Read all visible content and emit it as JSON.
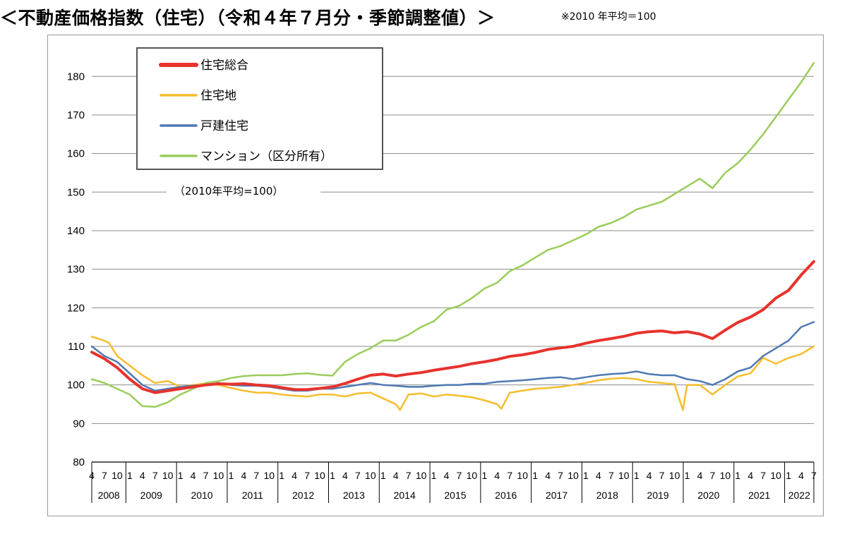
{
  "header": {
    "title": "＜不動産価格指数（住宅）（令和４年７月分・季節調整値）＞",
    "note": "※2010 年平均＝100"
  },
  "chart_data": {
    "type": "line",
    "annotation": "（2010年平均=100）",
    "ylim": [
      80,
      180
    ],
    "ylim_plot_max": 187,
    "yticks": [
      80,
      90,
      100,
      110,
      120,
      130,
      140,
      150,
      160,
      170,
      180
    ],
    "grid": true,
    "legend_position": "top-left",
    "x_month_labels": [
      "4",
      "7",
      "10",
      "1"
    ],
    "years": [
      "2008",
      "2009",
      "2010",
      "2011",
      "2012",
      "2013",
      "2014",
      "2015",
      "2016",
      "2017",
      "2018",
      "2019",
      "2020",
      "2021",
      "2022"
    ],
    "x_start": "2008-04",
    "x_end": "2022-07",
    "series": [
      {
        "name": "住宅総合",
        "color": "#e8322d",
        "width": 4,
        "points": [
          [
            "2008-04",
            108.5
          ],
          [
            "2008-07",
            106.8
          ],
          [
            "2008-10",
            104.5
          ],
          [
            "2009-01",
            101.5
          ],
          [
            "2009-04",
            99.0
          ],
          [
            "2009-07",
            98.0
          ],
          [
            "2009-10",
            98.5
          ],
          [
            "2010-01",
            99.0
          ],
          [
            "2010-04",
            99.5
          ],
          [
            "2010-07",
            100.0
          ],
          [
            "2010-10",
            100.3
          ],
          [
            "2011-01",
            100.2
          ],
          [
            "2011-04",
            100.3
          ],
          [
            "2011-07",
            100.0
          ],
          [
            "2011-10",
            99.8
          ],
          [
            "2012-01",
            99.3
          ],
          [
            "2012-04",
            98.8
          ],
          [
            "2012-07",
            98.8
          ],
          [
            "2012-10",
            99.1
          ],
          [
            "2013-01",
            99.5
          ],
          [
            "2013-04",
            100.4
          ],
          [
            "2013-07",
            101.5
          ],
          [
            "2013-10",
            102.5
          ],
          [
            "2014-01",
            102.8
          ],
          [
            "2014-04",
            102.3
          ],
          [
            "2014-07",
            102.8
          ],
          [
            "2014-10",
            103.2
          ],
          [
            "2015-01",
            103.8
          ],
          [
            "2015-04",
            104.3
          ],
          [
            "2015-07",
            104.8
          ],
          [
            "2015-10",
            105.5
          ],
          [
            "2016-01",
            106.0
          ],
          [
            "2016-04",
            106.6
          ],
          [
            "2016-07",
            107.4
          ],
          [
            "2016-10",
            107.8
          ],
          [
            "2017-01",
            108.4
          ],
          [
            "2017-04",
            109.2
          ],
          [
            "2017-07",
            109.6
          ],
          [
            "2017-10",
            110.0
          ],
          [
            "2018-01",
            110.8
          ],
          [
            "2018-04",
            111.5
          ],
          [
            "2018-07",
            112.0
          ],
          [
            "2018-10",
            112.6
          ],
          [
            "2019-01",
            113.4
          ],
          [
            "2019-04",
            113.8
          ],
          [
            "2019-07",
            114.0
          ],
          [
            "2019-10",
            113.5
          ],
          [
            "2020-01",
            113.8
          ],
          [
            "2020-04",
            113.2
          ],
          [
            "2020-07",
            112.0
          ],
          [
            "2020-10",
            114.2
          ],
          [
            "2021-01",
            116.2
          ],
          [
            "2021-04",
            117.6
          ],
          [
            "2021-07",
            119.5
          ],
          [
            "2021-10",
            122.5
          ],
          [
            "2022-01",
            124.5
          ],
          [
            "2022-04",
            128.5
          ],
          [
            "2022-07",
            132.0
          ]
        ]
      },
      {
        "name": "住宅地",
        "color": "#f6bd2c",
        "width": 2.5,
        "points": [
          [
            "2008-04",
            112.5
          ],
          [
            "2008-06",
            111.8
          ],
          [
            "2008-08",
            111.0
          ],
          [
            "2008-10",
            107.5
          ],
          [
            "2009-01",
            105.0
          ],
          [
            "2009-04",
            102.5
          ],
          [
            "2009-07",
            100.5
          ],
          [
            "2009-10",
            101.0
          ],
          [
            "2010-01",
            99.5
          ],
          [
            "2010-04",
            100.0
          ],
          [
            "2010-07",
            100.4
          ],
          [
            "2010-10",
            100.0
          ],
          [
            "2011-01",
            99.2
          ],
          [
            "2011-04",
            98.5
          ],
          [
            "2011-07",
            98.0
          ],
          [
            "2011-10",
            98.0
          ],
          [
            "2012-01",
            97.5
          ],
          [
            "2012-04",
            97.2
          ],
          [
            "2012-07",
            97.0
          ],
          [
            "2012-10",
            97.5
          ],
          [
            "2013-01",
            97.5
          ],
          [
            "2013-04",
            97.0
          ],
          [
            "2013-07",
            97.8
          ],
          [
            "2013-10",
            98.0
          ],
          [
            "2014-01",
            96.5
          ],
          [
            "2014-04",
            95.0
          ],
          [
            "2014-05",
            93.5
          ],
          [
            "2014-07",
            97.5
          ],
          [
            "2014-10",
            97.8
          ],
          [
            "2015-01",
            97.0
          ],
          [
            "2015-04",
            97.5
          ],
          [
            "2015-07",
            97.2
          ],
          [
            "2015-10",
            96.8
          ],
          [
            "2016-01",
            96.0
          ],
          [
            "2016-04",
            95.0
          ],
          [
            "2016-05",
            93.8
          ],
          [
            "2016-07",
            98.0
          ],
          [
            "2016-10",
            98.5
          ],
          [
            "2017-01",
            99.0
          ],
          [
            "2017-04",
            99.2
          ],
          [
            "2017-07",
            99.5
          ],
          [
            "2017-10",
            100.0
          ],
          [
            "2018-01",
            100.5
          ],
          [
            "2018-04",
            101.2
          ],
          [
            "2018-07",
            101.6
          ],
          [
            "2018-10",
            101.8
          ],
          [
            "2019-01",
            101.5
          ],
          [
            "2019-04",
            100.8
          ],
          [
            "2019-07",
            100.5
          ],
          [
            "2019-10",
            100.2
          ],
          [
            "2019-12",
            93.5
          ],
          [
            "2020-01",
            100.0
          ],
          [
            "2020-04",
            100.0
          ],
          [
            "2020-07",
            97.5
          ],
          [
            "2020-10",
            100.0
          ],
          [
            "2021-01",
            102.2
          ],
          [
            "2021-04",
            103.0
          ],
          [
            "2021-07",
            107.0
          ],
          [
            "2021-10",
            105.5
          ],
          [
            "2022-01",
            107.0
          ],
          [
            "2022-04",
            108.0
          ],
          [
            "2022-07",
            110.0
          ]
        ]
      },
      {
        "name": "戸建住宅",
        "color": "#4f79b3",
        "width": 2.5,
        "points": [
          [
            "2008-04",
            110.0
          ],
          [
            "2008-07",
            107.5
          ],
          [
            "2008-10",
            106.0
          ],
          [
            "2009-01",
            103.0
          ],
          [
            "2009-04",
            100.0
          ],
          [
            "2009-07",
            98.5
          ],
          [
            "2009-10",
            99.0
          ],
          [
            "2010-01",
            99.5
          ],
          [
            "2010-04",
            99.8
          ],
          [
            "2010-07",
            100.0
          ],
          [
            "2010-10",
            100.5
          ],
          [
            "2011-01",
            100.0
          ],
          [
            "2011-04",
            99.8
          ],
          [
            "2011-07",
            99.8
          ],
          [
            "2011-10",
            99.5
          ],
          [
            "2012-01",
            99.0
          ],
          [
            "2012-04",
            98.5
          ],
          [
            "2012-07",
            98.5
          ],
          [
            "2012-10",
            99.0
          ],
          [
            "2013-01",
            99.0
          ],
          [
            "2013-04",
            99.5
          ],
          [
            "2013-07",
            100.0
          ],
          [
            "2013-10",
            100.5
          ],
          [
            "2014-01",
            100.0
          ],
          [
            "2014-04",
            99.8
          ],
          [
            "2014-07",
            99.5
          ],
          [
            "2014-10",
            99.5
          ],
          [
            "2015-01",
            99.8
          ],
          [
            "2015-04",
            100.0
          ],
          [
            "2015-07",
            100.0
          ],
          [
            "2015-10",
            100.3
          ],
          [
            "2016-01",
            100.3
          ],
          [
            "2016-04",
            100.8
          ],
          [
            "2016-07",
            101.0
          ],
          [
            "2016-10",
            101.2
          ],
          [
            "2017-01",
            101.5
          ],
          [
            "2017-04",
            101.8
          ],
          [
            "2017-07",
            102.0
          ],
          [
            "2017-10",
            101.5
          ],
          [
            "2018-01",
            102.0
          ],
          [
            "2018-04",
            102.5
          ],
          [
            "2018-07",
            102.8
          ],
          [
            "2018-10",
            103.0
          ],
          [
            "2019-01",
            103.5
          ],
          [
            "2019-04",
            102.8
          ],
          [
            "2019-07",
            102.5
          ],
          [
            "2019-10",
            102.5
          ],
          [
            "2020-01",
            101.5
          ],
          [
            "2020-04",
            101.0
          ],
          [
            "2020-07",
            100.0
          ],
          [
            "2020-10",
            101.5
          ],
          [
            "2021-01",
            103.5
          ],
          [
            "2021-04",
            104.5
          ],
          [
            "2021-07",
            107.5
          ],
          [
            "2021-10",
            109.5
          ],
          [
            "2022-01",
            111.5
          ],
          [
            "2022-04",
            115.0
          ],
          [
            "2022-07",
            116.3
          ]
        ]
      },
      {
        "name": "マンション（区分所有）",
        "color": "#9acd5a",
        "width": 2.5,
        "points": [
          [
            "2008-04",
            101.5
          ],
          [
            "2008-07",
            100.5
          ],
          [
            "2008-10",
            99.0
          ],
          [
            "2009-01",
            97.5
          ],
          [
            "2009-04",
            94.5
          ],
          [
            "2009-07",
            94.3
          ],
          [
            "2009-10",
            95.5
          ],
          [
            "2010-01",
            97.5
          ],
          [
            "2010-04",
            99.0
          ],
          [
            "2010-07",
            100.5
          ],
          [
            "2010-10",
            101.0
          ],
          [
            "2011-01",
            101.8
          ],
          [
            "2011-04",
            102.3
          ],
          [
            "2011-07",
            102.5
          ],
          [
            "2011-10",
            102.5
          ],
          [
            "2012-01",
            102.5
          ],
          [
            "2012-04",
            102.8
          ],
          [
            "2012-07",
            103.0
          ],
          [
            "2012-10",
            102.6
          ],
          [
            "2013-01",
            102.4
          ],
          [
            "2013-04",
            106.0
          ],
          [
            "2013-07",
            108.0
          ],
          [
            "2013-10",
            109.5
          ],
          [
            "2014-01",
            111.5
          ],
          [
            "2014-04",
            111.5
          ],
          [
            "2014-07",
            113.0
          ],
          [
            "2014-10",
            115.0
          ],
          [
            "2015-01",
            116.5
          ],
          [
            "2015-04",
            119.5
          ],
          [
            "2015-07",
            120.5
          ],
          [
            "2015-10",
            122.5
          ],
          [
            "2016-01",
            125.0
          ],
          [
            "2016-04",
            126.5
          ],
          [
            "2016-07",
            129.5
          ],
          [
            "2016-10",
            131.0
          ],
          [
            "2017-01",
            133.0
          ],
          [
            "2017-04",
            135.0
          ],
          [
            "2017-07",
            136.0
          ],
          [
            "2017-10",
            137.5
          ],
          [
            "2018-01",
            139.0
          ],
          [
            "2018-04",
            141.0
          ],
          [
            "2018-07",
            142.0
          ],
          [
            "2018-10",
            143.5
          ],
          [
            "2019-01",
            145.5
          ],
          [
            "2019-04",
            146.5
          ],
          [
            "2019-07",
            147.5
          ],
          [
            "2019-10",
            149.5
          ],
          [
            "2020-01",
            151.5
          ],
          [
            "2020-04",
            153.5
          ],
          [
            "2020-07",
            151.0
          ],
          [
            "2020-10",
            155.0
          ],
          [
            "2021-01",
            157.5
          ],
          [
            "2021-04",
            161.0
          ],
          [
            "2021-07",
            165.0
          ],
          [
            "2021-10",
            169.5
          ],
          [
            "2022-01",
            174.0
          ],
          [
            "2022-04",
            178.5
          ],
          [
            "2022-07",
            183.5
          ]
        ]
      }
    ]
  }
}
